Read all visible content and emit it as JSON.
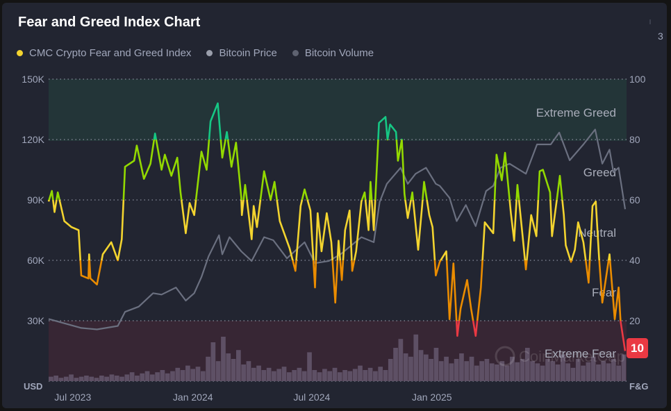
{
  "header": {
    "title": "Fear and Greed Index Chart",
    "clipped_text": "3"
  },
  "legend": [
    {
      "label": "CMC Crypto Fear and Greed Index",
      "color": "#f3d42f"
    },
    {
      "label": "Bitcoin Price",
      "color": "#9a9eab"
    },
    {
      "label": "Bitcoin Volume",
      "color": "#5e6270"
    }
  ],
  "watermark": "CoinMarketCap",
  "chart_data": {
    "type": "line",
    "title": "Fear and Greed Index Chart",
    "x_unit": "days since 2023-05-25",
    "x_range": [
      0,
      885
    ],
    "x_ticks": [
      {
        "day": 37,
        "label": "Jul 2023"
      },
      {
        "day": 221,
        "label": "Jan 2024"
      },
      {
        "day": 403,
        "label": "Jul 2024"
      },
      {
        "day": 587,
        "label": "Jan 2025"
      }
    ],
    "left_axis": {
      "label": "USD",
      "range": [
        0,
        150000
      ],
      "ticks": [
        {
          "v": 150,
          "label": "150K"
        },
        {
          "v": 120,
          "label": "120K"
        },
        {
          "v": 90,
          "label": "90K"
        },
        {
          "v": 60,
          "label": "60K"
        },
        {
          "v": 30,
          "label": "30K"
        }
      ]
    },
    "right_axis": {
      "label": "F&G",
      "range": [
        0,
        100
      ],
      "ticks": [
        {
          "v": 100,
          "label": "100"
        },
        {
          "v": 80,
          "label": "80"
        },
        {
          "v": 60,
          "label": "60"
        },
        {
          "v": 40,
          "label": "40"
        },
        {
          "v": 20,
          "label": "20"
        }
      ]
    },
    "zones": [
      {
        "name": "Extreme Greed",
        "range": [
          80,
          100
        ],
        "color": "#16c784"
      },
      {
        "name": "Greed",
        "range": [
          60,
          80
        ],
        "color": "#93d900"
      },
      {
        "name": "Neutral",
        "range": [
          40,
          60
        ],
        "color": "#f3d42f"
      },
      {
        "name": "Fear",
        "range": [
          20,
          40
        ],
        "color": "#ea8c00"
      },
      {
        "name": "Extreme Fear",
        "range": [
          0,
          20
        ],
        "color": "#ea3943"
      }
    ],
    "current_value": "10",
    "series": [
      {
        "name": "CMC Crypto Fear and Greed Index",
        "axis": "right",
        "points": [
          [
            0,
            59.5
          ],
          [
            5,
            63
          ],
          [
            9,
            56
          ],
          [
            14,
            62.5
          ],
          [
            24,
            53
          ],
          [
            35,
            51
          ],
          [
            46,
            50
          ],
          [
            50,
            35
          ],
          [
            61,
            34
          ],
          [
            62,
            42
          ],
          [
            64,
            34
          ],
          [
            74,
            32
          ],
          [
            83,
            42
          ],
          [
            96,
            46
          ],
          [
            106,
            40
          ],
          [
            112,
            47
          ],
          [
            117,
            71
          ],
          [
            131,
            73
          ],
          [
            135,
            78
          ],
          [
            146,
            67
          ],
          [
            156,
            72
          ],
          [
            163,
            82
          ],
          [
            173,
            70
          ],
          [
            178,
            75
          ],
          [
            188,
            68
          ],
          [
            197,
            74
          ],
          [
            202,
            62.5
          ],
          [
            210,
            49
          ],
          [
            216,
            59
          ],
          [
            223,
            55
          ],
          [
            234,
            76
          ],
          [
            242,
            70
          ],
          [
            248,
            86
          ],
          [
            259,
            92
          ],
          [
            266,
            74
          ],
          [
            273,
            82.5
          ],
          [
            280,
            71
          ],
          [
            287,
            79
          ],
          [
            295,
            61
          ],
          [
            296,
            55
          ],
          [
            301,
            65
          ],
          [
            311,
            47
          ],
          [
            314,
            58
          ],
          [
            319,
            51
          ],
          [
            330,
            69.5
          ],
          [
            340,
            60
          ],
          [
            346,
            66
          ],
          [
            354,
            53
          ],
          [
            369,
            44
          ],
          [
            378,
            36.5
          ],
          [
            386,
            58
          ],
          [
            392,
            63.5
          ],
          [
            401,
            56.5
          ],
          [
            408,
            31
          ],
          [
            412,
            55.6
          ],
          [
            418,
            43
          ],
          [
            426,
            55.6
          ],
          [
            433,
            46
          ],
          [
            439,
            26
          ],
          [
            444,
            46.5
          ],
          [
            449,
            33.5
          ],
          [
            454,
            50
          ],
          [
            461,
            56.5
          ],
          [
            465,
            36.5
          ],
          [
            471,
            43
          ],
          [
            479,
            59.5
          ],
          [
            484,
            62.5
          ],
          [
            490,
            50
          ],
          [
            493,
            66
          ],
          [
            498,
            50
          ],
          [
            503,
            72
          ],
          [
            506,
            85.5
          ],
          [
            516,
            87.5
          ],
          [
            519,
            80
          ],
          [
            523,
            85
          ],
          [
            532,
            82.5
          ],
          [
            535,
            73
          ],
          [
            541,
            80
          ],
          [
            545,
            62
          ],
          [
            550,
            54
          ],
          [
            557,
            62.5
          ],
          [
            566,
            43.5
          ],
          [
            572,
            58
          ],
          [
            575,
            66
          ],
          [
            583,
            55
          ],
          [
            588,
            51
          ],
          [
            593,
            35
          ],
          [
            599,
            39.5
          ],
          [
            609,
            43
          ],
          [
            614,
            20.5
          ],
          [
            620,
            39
          ],
          [
            626,
            15
          ],
          [
            631,
            24
          ],
          [
            641,
            33.5
          ],
          [
            647,
            24
          ],
          [
            654,
            15
          ],
          [
            662,
            31
          ],
          [
            668,
            52.6
          ],
          [
            681,
            49
          ],
          [
            686,
            75
          ],
          [
            694,
            66.5
          ],
          [
            699,
            75.6
          ],
          [
            708,
            55.6
          ],
          [
            713,
            46.5
          ],
          [
            718,
            65
          ],
          [
            726,
            48
          ],
          [
            731,
            37
          ],
          [
            739,
            55
          ],
          [
            747,
            48
          ],
          [
            752,
            69.5
          ],
          [
            757,
            70
          ],
          [
            768,
            62.5
          ],
          [
            771,
            48
          ],
          [
            778,
            59.5
          ],
          [
            783,
            68
          ],
          [
            789,
            55
          ],
          [
            792,
            45
          ],
          [
            800,
            39.5
          ],
          [
            806,
            43.5
          ],
          [
            811,
            52.6
          ],
          [
            819,
            46
          ],
          [
            827,
            32.6
          ],
          [
            833,
            58
          ],
          [
            838,
            59.5
          ],
          [
            843,
            41
          ],
          [
            848,
            26
          ],
          [
            859,
            42
          ],
          [
            867,
            20.5
          ],
          [
            873,
            31
          ],
          [
            876,
            19.8
          ],
          [
            883,
            10
          ]
        ]
      },
      {
        "name": "Bitcoin Price",
        "axis": "left",
        "unit": "K USD",
        "points": [
          [
            0,
            30.9
          ],
          [
            50,
            26.4
          ],
          [
            74,
            25.7
          ],
          [
            106,
            27.4
          ],
          [
            117,
            34.4
          ],
          [
            138,
            37
          ],
          [
            160,
            43.7
          ],
          [
            173,
            43
          ],
          [
            195,
            46.5
          ],
          [
            210,
            40
          ],
          [
            223,
            43.7
          ],
          [
            234,
            51.7
          ],
          [
            245,
            62
          ],
          [
            261,
            72.5
          ],
          [
            266,
            63
          ],
          [
            277,
            71.5
          ],
          [
            295,
            64.5
          ],
          [
            311,
            59.7
          ],
          [
            330,
            71.5
          ],
          [
            344,
            70
          ],
          [
            365,
            61
          ],
          [
            392,
            69
          ],
          [
            408,
            58.6
          ],
          [
            429,
            59.7
          ],
          [
            447,
            63
          ],
          [
            479,
            71.5
          ],
          [
            498,
            69
          ],
          [
            507,
            89
          ],
          [
            518,
            98
          ],
          [
            539,
            106
          ],
          [
            550,
            98
          ],
          [
            562,
            103
          ],
          [
            578,
            106
          ],
          [
            593,
            98
          ],
          [
            599,
            97
          ],
          [
            614,
            91
          ],
          [
            625,
            79.5
          ],
          [
            639,
            87.5
          ],
          [
            654,
            77
          ],
          [
            670,
            94.4
          ],
          [
            681,
            97
          ],
          [
            692,
            106
          ],
          [
            706,
            108
          ],
          [
            731,
            103
          ],
          [
            748,
            117.6
          ],
          [
            769,
            117.6
          ],
          [
            782,
            123.5
          ],
          [
            798,
            109.7
          ],
          [
            819,
            117.6
          ],
          [
            837,
            125
          ],
          [
            848,
            108
          ],
          [
            859,
            115
          ],
          [
            865,
            103.8
          ],
          [
            873,
            106
          ],
          [
            883,
            85.4
          ]
        ]
      },
      {
        "name": "Bitcoin Volume",
        "axis": "none",
        "unit": "relative",
        "values": [
          4,
          5,
          3,
          4,
          6,
          3,
          4,
          5,
          4,
          3,
          5,
          4,
          6,
          5,
          4,
          6,
          8,
          5,
          7,
          9,
          6,
          8,
          10,
          7,
          9,
          12,
          10,
          14,
          11,
          13,
          9,
          22,
          35,
          18,
          40,
          25,
          20,
          28,
          15,
          18,
          12,
          14,
          10,
          12,
          9,
          11,
          13,
          8,
          10,
          12,
          9,
          26,
          10,
          8,
          11,
          9,
          12,
          8,
          10,
          9,
          11,
          14,
          10,
          12,
          9,
          13,
          10,
          20,
          30,
          38,
          25,
          22,
          42,
          28,
          24,
          20,
          30,
          18,
          22,
          16,
          20,
          25,
          18,
          22,
          14,
          18,
          20,
          16,
          15,
          18,
          14,
          22,
          17,
          20,
          30,
          18,
          16,
          14,
          20,
          18,
          15,
          24,
          16,
          12,
          20,
          14,
          17,
          22,
          15,
          18,
          16,
          20,
          14,
          24
        ]
      }
    ]
  }
}
